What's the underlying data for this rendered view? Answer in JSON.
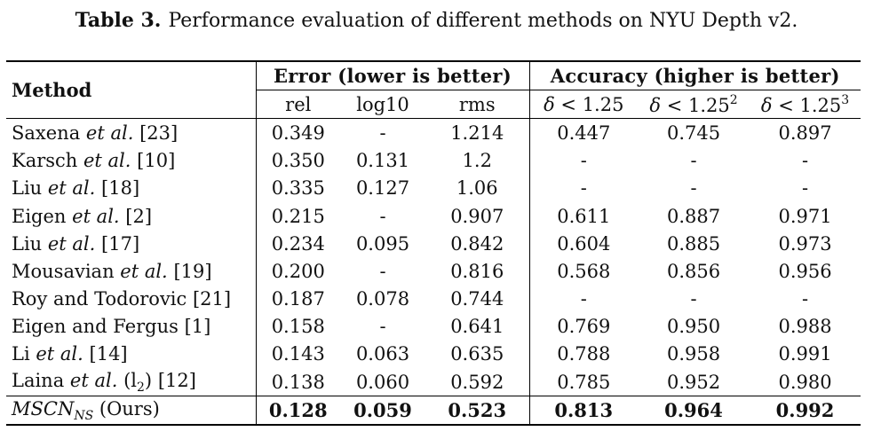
{
  "caption": {
    "label": "Table 3.",
    "text": "Performance evaluation of different methods on NYU Depth v2."
  },
  "table": {
    "method_header": "Method",
    "error_group": "Error (lower is better)",
    "accuracy_group": "Accuracy (higher is better)",
    "columns": {
      "rel": "rel",
      "log10": "log10",
      "rms": "rms",
      "acc1_delta": "δ",
      "acc1": "< 1.25",
      "acc2_delta": "δ",
      "acc2": "< 1.25",
      "acc2_exp": "2",
      "acc3_delta": "δ",
      "acc3": "< 1.25",
      "acc3_exp": "3"
    },
    "rows": [
      {
        "name": "Saxena",
        "etal": "et al.",
        "ref": "[23]",
        "rel": "0.349",
        "log10": "-",
        "rms": "1.214",
        "a1": "0.447",
        "a2": "0.745",
        "a3": "0.897"
      },
      {
        "name": "Karsch",
        "etal": "et al.",
        "ref": "[10]",
        "rel": "0.350",
        "log10": "0.131",
        "rms": "1.2",
        "a1": "-",
        "a2": "-",
        "a3": "-"
      },
      {
        "name": "Liu",
        "etal": "et al.",
        "ref": "[18]",
        "rel": "0.335",
        "log10": "0.127",
        "rms": "1.06",
        "a1": "-",
        "a2": "-",
        "a3": "-"
      },
      {
        "name": "Eigen",
        "etal": "et al.",
        "ref": "[2]",
        "rel": "0.215",
        "log10": "-",
        "rms": "0.907",
        "a1": "0.611",
        "a2": "0.887",
        "a3": "0.971"
      },
      {
        "name": "Liu",
        "etal": "et al.",
        "ref": "[17]",
        "rel": "0.234",
        "log10": "0.095",
        "rms": "0.842",
        "a1": "0.604",
        "a2": "0.885",
        "a3": "0.973"
      },
      {
        "name": "Mousavian",
        "etal": "et al.",
        "ref": "[19]",
        "rel": "0.200",
        "log10": "-",
        "rms": "0.816",
        "a1": "0.568",
        "a2": "0.856",
        "a3": "0.956"
      },
      {
        "name": "Roy and Todorovic",
        "etal": "",
        "ref": "[21]",
        "rel": "0.187",
        "log10": "0.078",
        "rms": "0.744",
        "a1": "-",
        "a2": "-",
        "a3": "-"
      },
      {
        "name": "Eigen and Fergus",
        "etal": "",
        "ref": "[1]",
        "rel": "0.158",
        "log10": "-",
        "rms": "0.641",
        "a1": "0.769",
        "a2": "0.950",
        "a3": "0.988"
      },
      {
        "name": "Li",
        "etal": "et al.",
        "ref": "[14]",
        "rel": "0.143",
        "log10": "0.063",
        "rms": "0.635",
        "a1": "0.788",
        "a2": "0.958",
        "a3": "0.991"
      },
      {
        "name": "Laina",
        "etal": "et al.",
        "loss": "(l",
        "loss_sub": "2",
        "loss_close": ")",
        "ref": "[12]",
        "rel": "0.138",
        "log10": "0.060",
        "rms": "0.592",
        "a1": "0.785",
        "a2": "0.952",
        "a3": "0.980"
      }
    ],
    "ours": {
      "name": "MSCN",
      "name_sub": "NS",
      "tag": "(Ours)",
      "rel": "0.128",
      "log10": "0.059",
      "rms": "0.523",
      "a1": "0.813",
      "a2": "0.964",
      "a3": "0.992"
    }
  }
}
